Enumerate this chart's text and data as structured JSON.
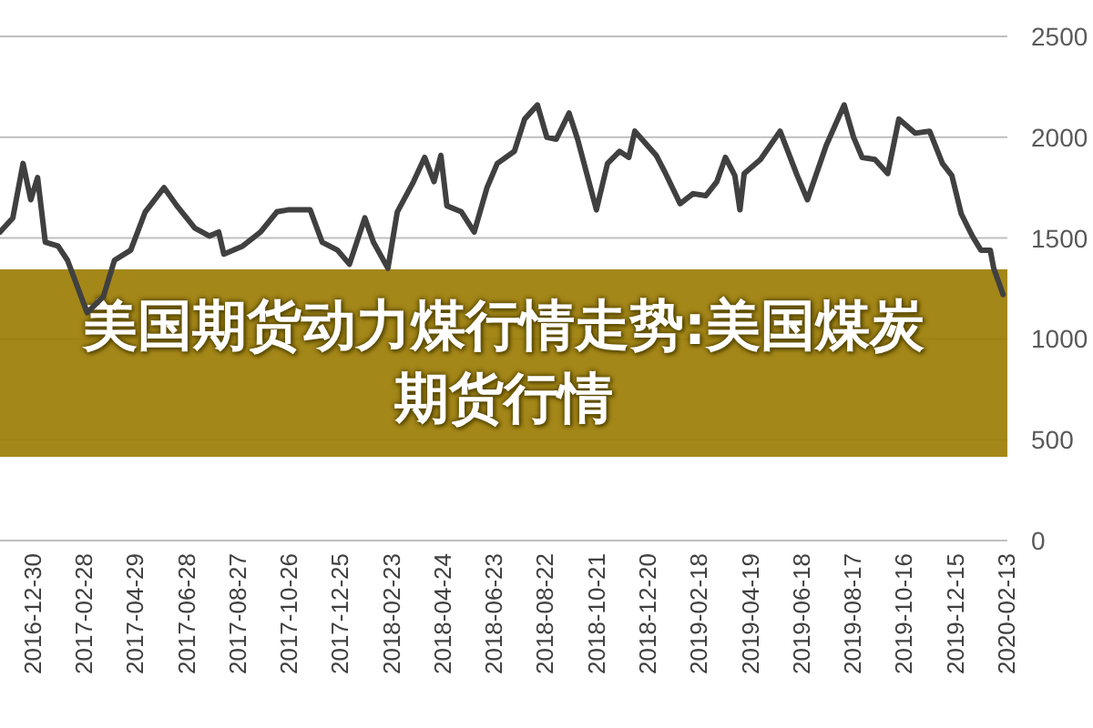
{
  "chart_data": {
    "type": "line",
    "title": "美国期货动力煤行情走势:美国煤炭期货行情",
    "x": [
      "2016-11-22",
      "2016-12-07",
      "2016-12-19",
      "2016-12-28",
      "2017-01-05",
      "2017-01-14",
      "2017-01-29",
      "2017-02-09",
      "2017-03-04",
      "2017-03-23",
      "2017-04-05",
      "2017-04-24",
      "2017-05-11",
      "2017-06-02",
      "2017-06-17",
      "2017-07-08",
      "2017-07-25",
      "2017-08-05",
      "2017-08-11",
      "2017-09-02",
      "2017-09-23",
      "2017-10-12",
      "2017-10-25",
      "2017-11-20",
      "2017-12-04",
      "2017-12-22",
      "2018-01-05",
      "2018-01-23",
      "2018-02-02",
      "2018-02-19",
      "2018-03-02",
      "2018-03-21",
      "2018-04-03",
      "2018-04-14",
      "2018-04-22",
      "2018-04-29",
      "2018-05-16",
      "2018-05-31",
      "2018-06-15",
      "2018-06-27",
      "2018-07-17",
      "2018-07-29",
      "2018-08-13",
      "2018-08-24",
      "2018-09-04",
      "2018-09-19",
      "2018-09-29",
      "2018-10-21",
      "2018-11-03",
      "2018-11-17",
      "2018-11-28",
      "2018-12-05",
      "2018-12-30",
      "2019-01-10",
      "2019-01-27",
      "2019-02-11",
      "2019-02-26",
      "2019-03-11",
      "2019-03-21",
      "2019-04-01",
      "2019-04-07",
      "2019-04-12",
      "2019-05-01",
      "2019-05-24",
      "2019-06-13",
      "2019-06-25",
      "2019-07-17",
      "2019-08-07",
      "2019-08-18",
      "2019-08-28",
      "2019-09-12",
      "2019-09-27",
      "2019-10-10",
      "2019-10-29",
      "2019-11-15",
      "2019-11-30",
      "2019-12-11",
      "2019-12-22",
      "2020-01-04",
      "2020-01-14",
      "2020-01-25",
      "2020-01-29",
      "2020-02-09"
    ],
    "series": [
      {
        "color": "#404040",
        "values": [
          1530,
          1600,
          1870,
          1690,
          1800,
          1480,
          1460,
          1390,
          1130,
          1210,
          1390,
          1440,
          1630,
          1750,
          1660,
          1550,
          1510,
          1530,
          1420,
          1460,
          1530,
          1630,
          1640,
          1640,
          1480,
          1440,
          1370,
          1600,
          1480,
          1350,
          1630,
          1780,
          1900,
          1780,
          1910,
          1660,
          1630,
          1530,
          1750,
          1870,
          1930,
          2090,
          2160,
          2000,
          1990,
          2120,
          1990,
          1640,
          1870,
          1930,
          1900,
          2030,
          1910,
          1820,
          1670,
          1720,
          1710,
          1780,
          1900,
          1810,
          1640,
          1820,
          1890,
          2030,
          1810,
          1690,
          1960,
          2160,
          2000,
          1900,
          1890,
          1820,
          2090,
          2020,
          2030,
          1870,
          1810,
          1620,
          1510,
          1440,
          1440,
          1350,
          1220
        ]
      }
    ],
    "xlim": [
      "2016-11-22",
      "2020-02-14"
    ],
    "xticks": [
      "2016-12-30",
      "2017-02-28",
      "2017-04-29",
      "2017-06-28",
      "2017-08-27",
      "2017-10-26",
      "2017-12-25",
      "2018-02-23",
      "2018-04-24",
      "2018-06-23",
      "2018-08-22",
      "2018-10-21",
      "2018-12-20",
      "2019-02-18",
      "2019-04-19",
      "2019-06-18",
      "2019-08-17",
      "2019-10-16",
      "2019-12-15",
      "2020-02-13"
    ],
    "ylim": [
      0,
      2500
    ],
    "yticks": [
      0,
      500,
      1000,
      1500,
      2000,
      2500
    ],
    "grid": "y"
  }
}
